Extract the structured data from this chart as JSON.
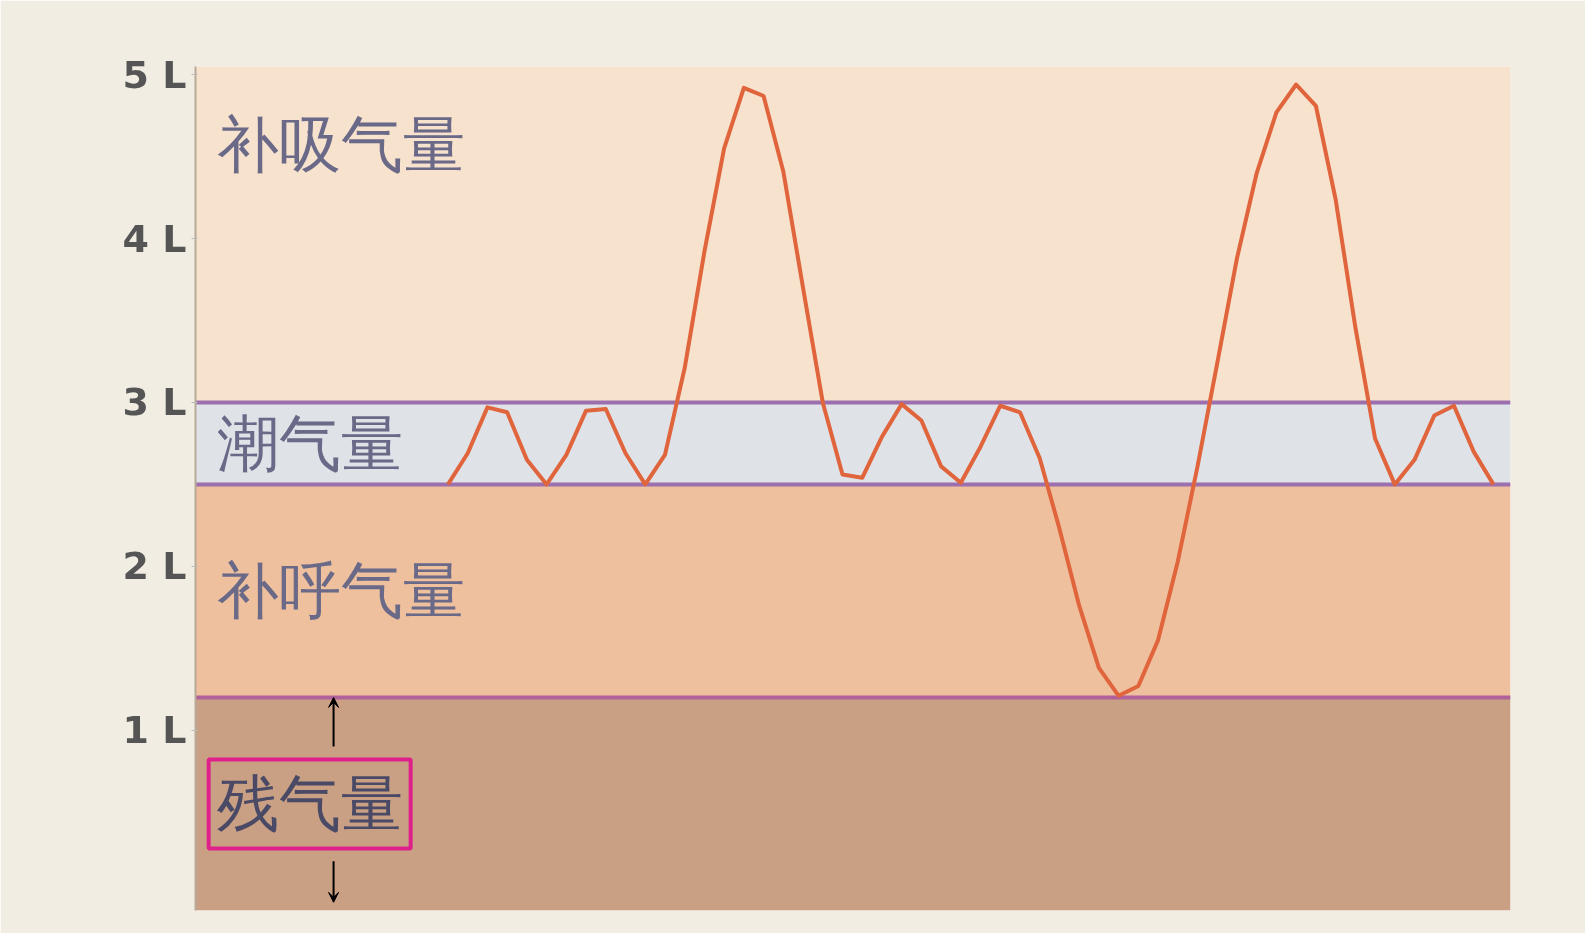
{
  "chart_data": {
    "type": "line",
    "categories": [
      null,
      null,
      null,
      null,
      null,
      null,
      null,
      null,
      null,
      null,
      null,
      null,
      null,
      null,
      null,
      null,
      null,
      null,
      null,
      null,
      null,
      null,
      null,
      null,
      null,
      null,
      null,
      null,
      null,
      null,
      null,
      null,
      null,
      null,
      null,
      null,
      null,
      null,
      null,
      null,
      null,
      null,
      null,
      null,
      null,
      null,
      null,
      null,
      null,
      null,
      null,
      null,
      null,
      null
    ],
    "series": [
      {
        "color": "#e0643c",
        "values": [
          2.5,
          2.69,
          2.97,
          2.94,
          2.65,
          2.5,
          2.68,
          2.95,
          2.96,
          2.69,
          2.5,
          2.68,
          3.21,
          3.92,
          4.55,
          4.92,
          4.87,
          4.41,
          3.7,
          3.0,
          2.56,
          2.54,
          2.79,
          2.99,
          2.89,
          2.61,
          2.51,
          2.73,
          2.98,
          2.94,
          2.66,
          2.23,
          1.76,
          1.38,
          1.21,
          1.27,
          1.55,
          2.03,
          2.61,
          3.24,
          3.88,
          4.4,
          4.77,
          4.94,
          4.81,
          4.24,
          3.46,
          2.78,
          2.5,
          2.65,
          2.92,
          2.98,
          2.7,
          2.5
        ]
      }
    ],
    "ylim": [
      -0.1,
      5.05
    ],
    "yticks": [
      {
        "value": 1,
        "label": "1 L"
      },
      {
        "value": 2,
        "label": "2 L"
      },
      {
        "value": 3,
        "label": "3 L"
      },
      {
        "value": 4,
        "label": "4 L"
      },
      {
        "value": 5,
        "label": "5 L"
      }
    ],
    "tick_labels": "y",
    "marker": "none",
    "line_style": "solid",
    "bands": [
      {
        "axis": "y",
        "from": -0.1,
        "to": 1.2,
        "label": "残气量",
        "color": "#c9a084"
      },
      {
        "axis": "y",
        "from": 1.2,
        "to": 2.5,
        "label": "补呼气量",
        "color": "#efc09e"
      },
      {
        "axis": "y",
        "from": 2.5,
        "to": 3.0,
        "label": "潮气量",
        "color": "#dfe3e8"
      },
      {
        "axis": "y",
        "from": 3.0,
        "to": 5.05,
        "label": "补吸气量",
        "color": "#f7e2cd"
      }
    ],
    "ref_lines": [
      {
        "axis": "y",
        "value": 3.0,
        "color": "#9c6fae"
      },
      {
        "axis": "y",
        "value": 2.5,
        "color": "#9c6fae"
      },
      {
        "axis": "y",
        "value": 1.2,
        "color": "#b0609a"
      }
    ]
  }
}
